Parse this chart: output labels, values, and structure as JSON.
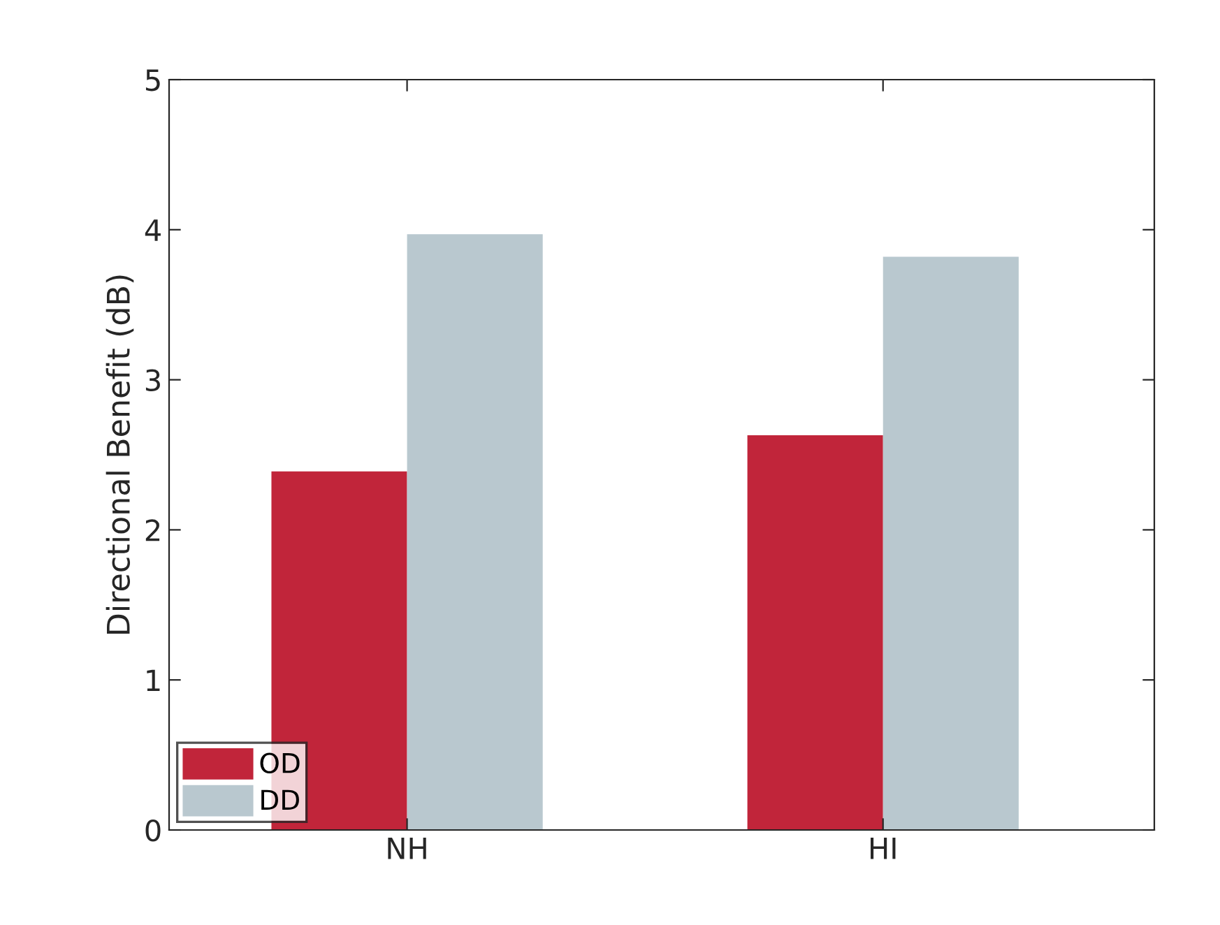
{
  "chart_data": {
    "type": "bar",
    "ylabel": "Directional Benefit (dB)",
    "categories": [
      "NH",
      "HI"
    ],
    "series": [
      {
        "name": "OD",
        "color": "#c1253a",
        "values": [
          2.39,
          2.63
        ]
      },
      {
        "name": "DD",
        "color": "#b9c8cf",
        "values": [
          3.97,
          3.82
        ]
      }
    ],
    "ylim": [
      0,
      5
    ],
    "yticks": [
      0,
      1,
      2,
      3,
      4,
      5
    ],
    "grid": false,
    "legend": "bottom left"
  }
}
